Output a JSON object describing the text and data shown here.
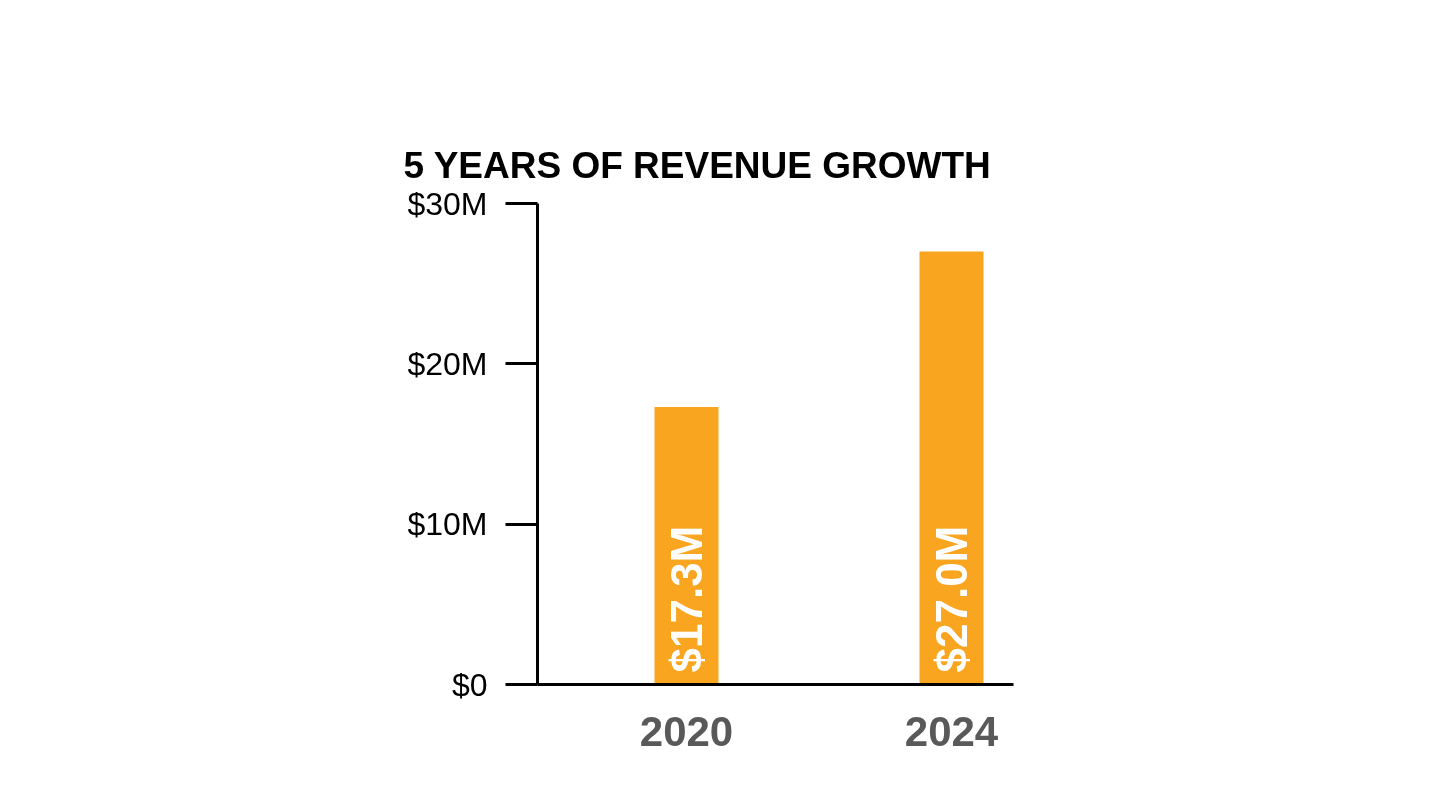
{
  "chart_data": {
    "type": "bar",
    "title": "5 YEARS OF REVENUE GROWTH",
    "categories": [
      "2020",
      "2024"
    ],
    "values": [
      17.3,
      27.0
    ],
    "color": "#f9a51f",
    "value_labels": [
      "$17.3M",
      "$27.0M"
    ],
    "ylim": [
      0,
      30
    ],
    "yticks": [
      {
        "value": 0,
        "label": "$0"
      },
      {
        "value": 10,
        "label": "$10M"
      },
      {
        "value": 20,
        "label": "$20M"
      },
      {
        "value": 30,
        "label": "$30M"
      }
    ],
    "grid": false
  }
}
